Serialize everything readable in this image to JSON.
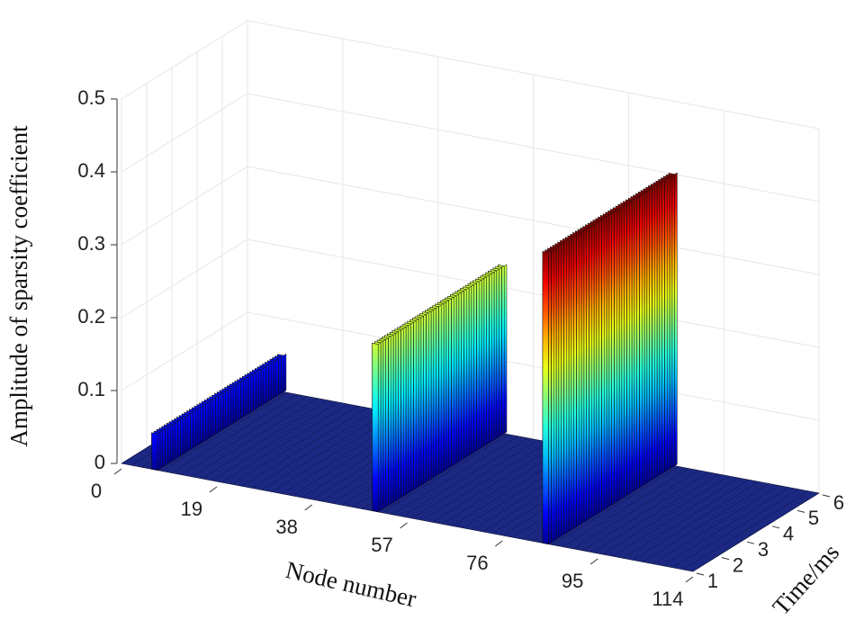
{
  "chart_data": {
    "type": "bar3d",
    "zlabel": "Amplitude of sparsity coefficient",
    "xlabel": "Node number",
    "ylabel": "Time/ms",
    "xlim": [
      0,
      114
    ],
    "xticks": [
      0,
      19,
      38,
      57,
      76,
      95,
      114
    ],
    "ylim": [
      1,
      6
    ],
    "yticks": [
      1,
      2,
      3,
      4,
      5,
      6
    ],
    "zlim": [
      0,
      0.5
    ],
    "zticks": [
      0,
      0.1,
      0.2,
      0.3,
      0.4,
      0.5
    ],
    "nodes": [
      6,
      50,
      84
    ],
    "values": [
      0.05,
      0.23,
      0.4
    ],
    "colormap": "jet",
    "floor_color": "#1f2d8c",
    "grid": true
  }
}
